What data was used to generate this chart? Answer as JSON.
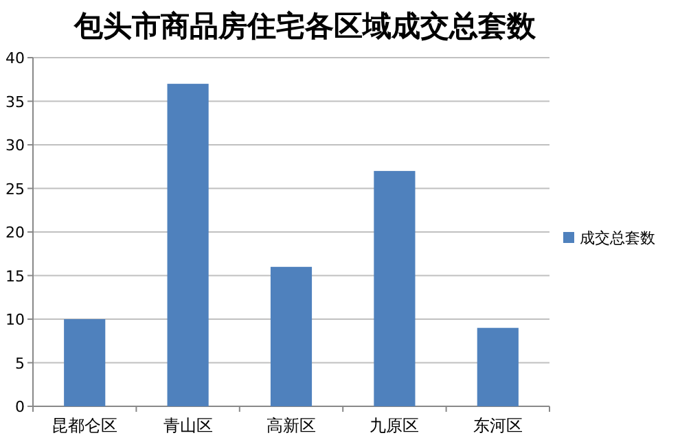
{
  "chart_data": {
    "type": "bar",
    "title": "包头市商品房住宅各区域成交总套数",
    "categories": [
      "昆都仑区",
      "青山区",
      "高新区",
      "九原区",
      "东河区"
    ],
    "series": [
      {
        "name": "成交总套数",
        "color": "#4f81bd",
        "values": [
          10,
          37,
          16,
          27,
          9
        ]
      }
    ],
    "ylim": [
      0,
      40
    ],
    "yticks": [
      0,
      5,
      10,
      15,
      20,
      25,
      30,
      35,
      40
    ],
    "grid": "y",
    "legend": "right"
  }
}
